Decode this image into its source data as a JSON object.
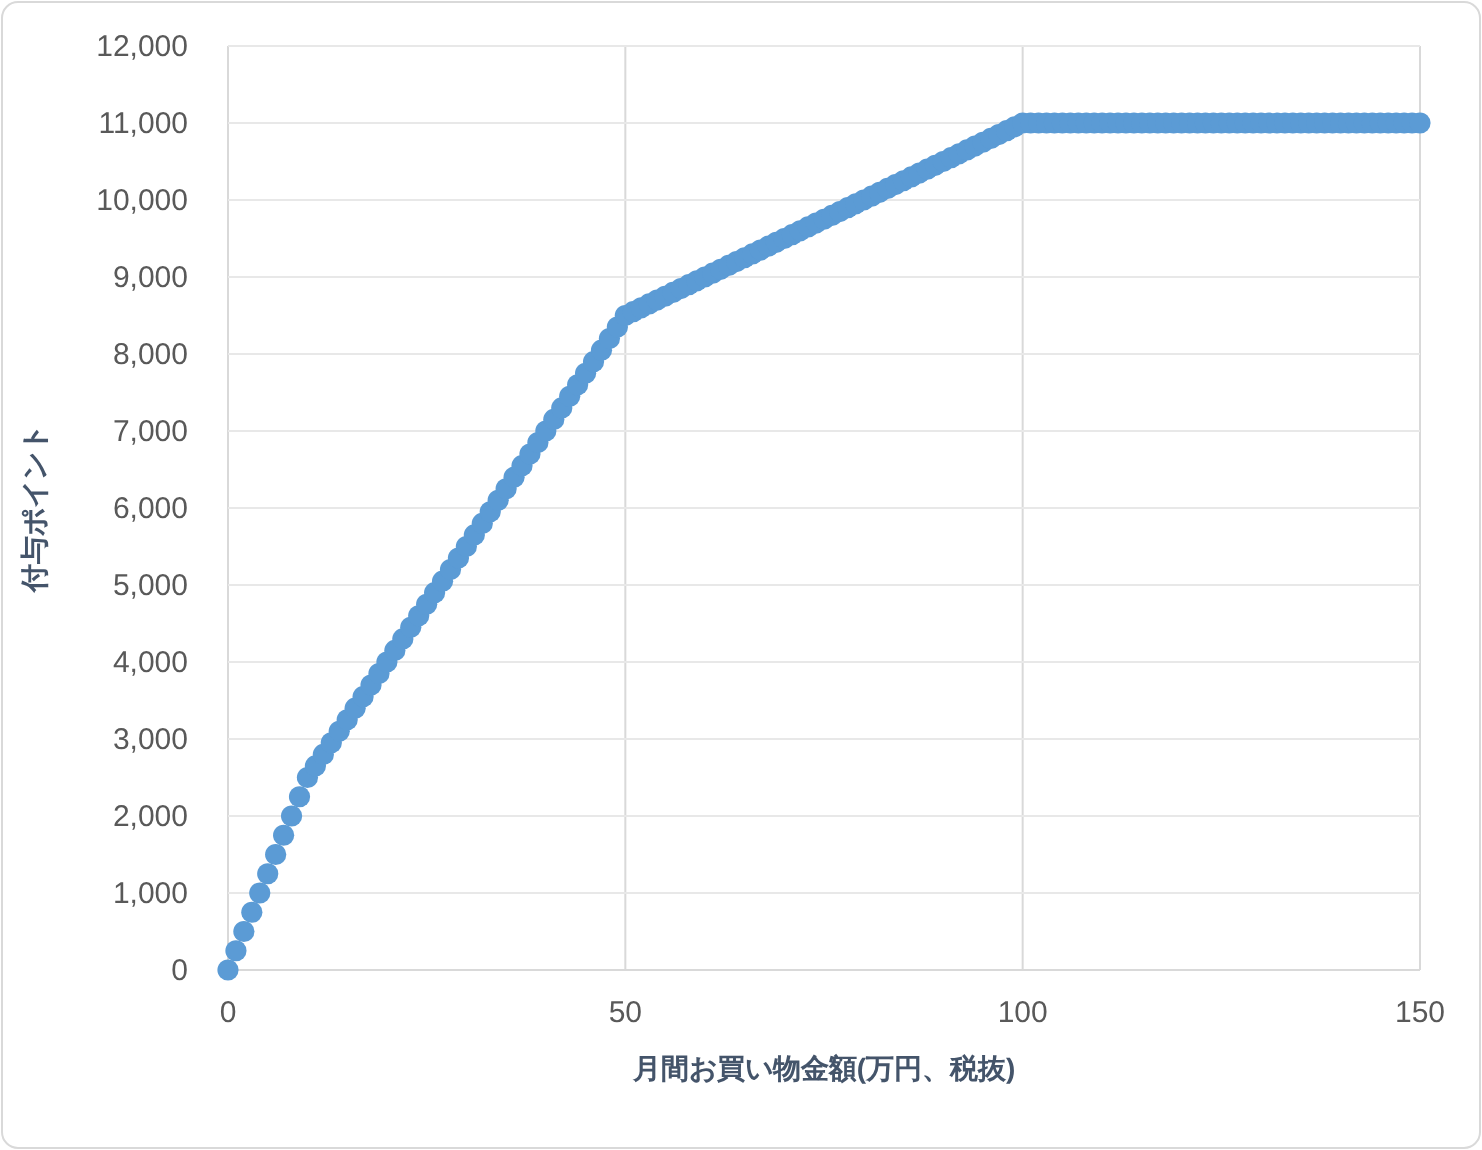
{
  "chart_data": {
    "type": "scatter",
    "xlabel": "月間お買い物金額(万円、税抜)",
    "ylabel": "付与ポイント",
    "x": [
      0,
      1,
      2,
      3,
      4,
      5,
      6,
      7,
      8,
      9,
      10,
      11,
      12,
      13,
      14,
      15,
      16,
      17,
      18,
      19,
      20,
      21,
      22,
      23,
      24,
      25,
      26,
      27,
      28,
      29,
      30,
      31,
      32,
      33,
      34,
      35,
      36,
      37,
      38,
      39,
      40,
      41,
      42,
      43,
      44,
      45,
      46,
      47,
      48,
      49,
      50,
      51,
      52,
      53,
      54,
      55,
      56,
      57,
      58,
      59,
      60,
      61,
      62,
      63,
      64,
      65,
      66,
      67,
      68,
      69,
      70,
      71,
      72,
      73,
      74,
      75,
      76,
      77,
      78,
      79,
      80,
      81,
      82,
      83,
      84,
      85,
      86,
      87,
      88,
      89,
      90,
      91,
      92,
      93,
      94,
      95,
      96,
      97,
      98,
      99,
      100,
      101,
      102,
      103,
      104,
      105,
      106,
      107,
      108,
      109,
      110,
      111,
      112,
      113,
      114,
      115,
      116,
      117,
      118,
      119,
      120,
      121,
      122,
      123,
      124,
      125,
      126,
      127,
      128,
      129,
      130,
      131,
      132,
      133,
      134,
      135,
      136,
      137,
      138,
      139,
      140,
      141,
      142,
      143,
      144,
      145,
      146,
      147,
      148,
      149,
      150
    ],
    "series": [
      {
        "color": "#5b9bd5",
        "values": [
          0,
          250,
          500,
          750,
          1000,
          1250,
          1500,
          1750,
          2000,
          2250,
          2500,
          2650,
          2800,
          2950,
          3100,
          3250,
          3400,
          3550,
          3700,
          3850,
          4000,
          4150,
          4300,
          4450,
          4600,
          4750,
          4900,
          5050,
          5200,
          5350,
          5500,
          5650,
          5800,
          5950,
          6100,
          6250,
          6400,
          6550,
          6700,
          6850,
          7000,
          7150,
          7300,
          7450,
          7600,
          7750,
          7900,
          8050,
          8200,
          8350,
          8500,
          8550,
          8600,
          8650,
          8700,
          8750,
          8800,
          8850,
          8900,
          8950,
          9000,
          9050,
          9100,
          9150,
          9200,
          9250,
          9300,
          9350,
          9400,
          9450,
          9500,
          9550,
          9600,
          9650,
          9700,
          9750,
          9800,
          9850,
          9900,
          9950,
          10000,
          10050,
          10100,
          10150,
          10200,
          10250,
          10300,
          10350,
          10400,
          10450,
          10500,
          10550,
          10600,
          10650,
          10700,
          10750,
          10800,
          10850,
          10900,
          10950,
          11000,
          11000,
          11000,
          11000,
          11000,
          11000,
          11000,
          11000,
          11000,
          11000,
          11000,
          11000,
          11000,
          11000,
          11000,
          11000,
          11000,
          11000,
          11000,
          11000,
          11000,
          11000,
          11000,
          11000,
          11000,
          11000,
          11000,
          11000,
          11000,
          11000,
          11000,
          11000,
          11000,
          11000,
          11000,
          11000,
          11000,
          11000,
          11000,
          11000,
          11000,
          11000,
          11000,
          11000,
          11000,
          11000,
          11000,
          11000,
          11000,
          11000,
          11000
        ]
      }
    ],
    "xlim": [
      0,
      150
    ],
    "ylim": [
      0,
      12000
    ],
    "xticks": [
      0,
      50,
      100,
      150
    ],
    "yticks": [
      0,
      {
        "value": 1000,
        "label": "1,000"
      },
      {
        "value": 2000,
        "label": "2,000"
      },
      {
        "value": 3000,
        "label": "3,000"
      },
      {
        "value": 4000,
        "label": "4,000"
      },
      {
        "value": 5000,
        "label": "5,000"
      },
      {
        "value": 6000,
        "label": "6,000"
      },
      {
        "value": 7000,
        "label": "7,000"
      },
      {
        "value": 8000,
        "label": "8,000"
      },
      {
        "value": 9000,
        "label": "9,000"
      },
      {
        "value": 10000,
        "label": "10,000"
      },
      {
        "value": 11000,
        "label": "11,000"
      },
      {
        "value": 12000,
        "label": "12,000"
      }
    ],
    "grid": true,
    "marker": "circle"
  }
}
